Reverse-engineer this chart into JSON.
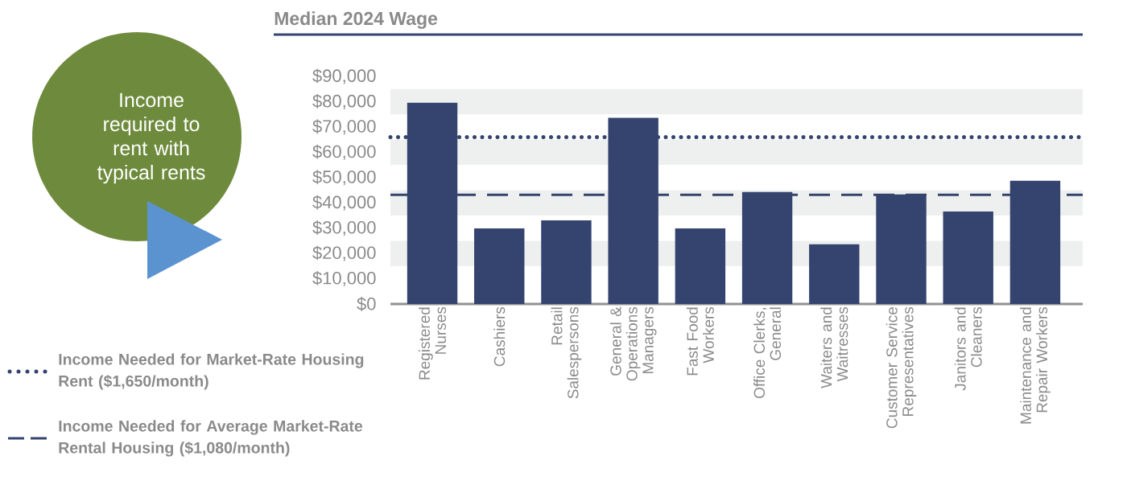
{
  "chart_data": {
    "type": "bar",
    "title": "Median 2024 Wage",
    "categories": [
      "Registered Nurses",
      "Cashiers",
      "Retail Salespersons",
      "General & Operations Managers",
      "Fast Food Workers",
      "Office Clerks, General",
      "Waiters and Waitresses",
      "Customer Service Representatives",
      "Janitors and Cleaners",
      "Maintenance and Repair Workers"
    ],
    "values": [
      79600,
      29900,
      33100,
      73600,
      29900,
      44300,
      23600,
      43300,
      36600,
      48700
    ],
    "color": "#34446f",
    "ylim": [
      0,
      90000
    ],
    "yticks": [
      {
        "value": 0,
        "label": "$0"
      },
      {
        "value": 10000,
        "label": "$10,000"
      },
      {
        "value": 20000,
        "label": "$20,000"
      },
      {
        "value": 30000,
        "label": "$30,000"
      },
      {
        "value": 40000,
        "label": "$40,000"
      },
      {
        "value": 50000,
        "label": "$50,000"
      },
      {
        "value": 60000,
        "label": "$60,000"
      },
      {
        "value": 70000,
        "label": "$70,000"
      },
      {
        "value": 80000,
        "label": "$80,000"
      },
      {
        "value": 90000,
        "label": "$90,000"
      }
    ],
    "ref_lines": [
      {
        "axis": "y",
        "value": 66000,
        "label": "Income Needed for Market-Rate Housing Rent ($1,650/month)",
        "line_style": "dotted",
        "color": "#34446f"
      },
      {
        "axis": "y",
        "value": 43200,
        "label": "Income Needed for Average Market-Rate Rental Housing ($1,080/month)",
        "line_style": "dashed",
        "color": "#34446f"
      }
    ],
    "bands": [
      {
        "axis": "y",
        "from": 15000,
        "to": 25000,
        "color": "#eef0ef"
      },
      {
        "axis": "y",
        "from": 35000,
        "to": 45000,
        "color": "#eef0ef"
      },
      {
        "axis": "y",
        "from": 55000,
        "to": 65000,
        "color": "#eef0ef"
      },
      {
        "axis": "y",
        "from": 75000,
        "to": 85000,
        "color": "#eef0ef"
      }
    ],
    "annotations": [
      "Income required to rent with typical rents"
    ],
    "legend": "bottom left"
  }
}
